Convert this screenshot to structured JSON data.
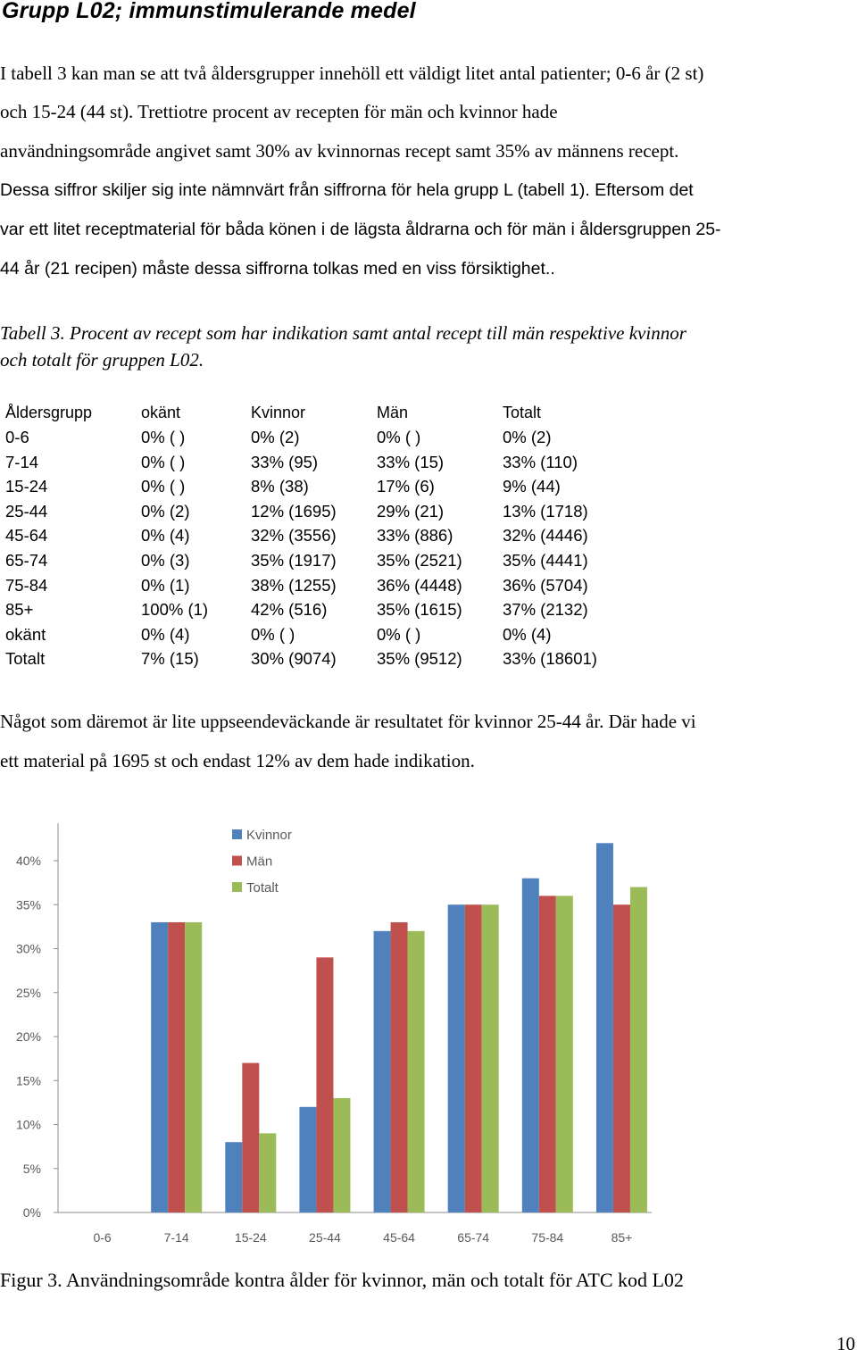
{
  "heading": "Grupp L02; immunstimulerande medel",
  "intro_lines": [
    "I tabell 3 kan man se att två åldersgrupper innehöll ett väldigt litet antal patienter; 0-6 år (2 st)",
    "och 15-24 (44 st). Trettiotre procent av recepten för män och kvinnor hade",
    "användningsområde angivet  samt 30% av kvinnornas recept samt 35% av männens recept."
  ],
  "intro_lines_sans": [
    "Dessa siffror skiljer sig inte nämnvärt från siffrorna för hela grupp L (tabell 1). Eftersom det",
    "var ett litet receptmaterial för båda könen i de lägsta åldrarna och för män i åldersgruppen 25-",
    "44 år (21 recipen) måste dessa siffrorna tolkas med en viss försiktighet.. "
  ],
  "table_caption": [
    "Tabell 3. Procent av recept som har indikation samt antal recept till män respektive kvinnor",
    "och totalt för gruppen L02."
  ],
  "table": {
    "headers": [
      "Åldersgrupp",
      "okänt",
      "Kvinnor",
      "Män",
      "Totalt"
    ],
    "rows": [
      [
        "0-6",
        "0% ( )",
        "0% (2)",
        "0% ( )",
        "0% (2)"
      ],
      [
        "7-14",
        "0% ( )",
        "33% (95)",
        "33% (15)",
        "33% (110)"
      ],
      [
        "15-24",
        "0% ( )",
        "8% (38)",
        "17% (6)",
        "9% (44)"
      ],
      [
        "25-44",
        "0% (2)",
        "12% (1695)",
        "29% (21)",
        "13% (1718)"
      ],
      [
        "45-64",
        "0% (4)",
        "32% (3556)",
        "33% (886)",
        "32% (4446)"
      ],
      [
        "65-74",
        "0% (3)",
        "35% (1917)",
        "35% (2521)",
        "35% (4441)"
      ],
      [
        "75-84",
        "0% (1)",
        "38% (1255)",
        "36% (4448)",
        "36% (5704)"
      ],
      [
        "85+",
        "100% (1)",
        "42% (516)",
        "35% (1615)",
        "37% (2132)"
      ],
      [
        "okänt",
        "0% (4)",
        "0% ( )",
        "0% ( )",
        "0% (4)"
      ],
      [
        "Totalt",
        "7% (15)",
        "30% (9074)",
        "35% (9512)",
        "33% (18601)"
      ]
    ]
  },
  "after_lines": [
    "Något som däremot är lite uppseendeväckande är resultatet för kvinnor 25-44 år. Där hade vi",
    "ett material på 1695 st och endast 12% av dem hade indikation."
  ],
  "chart_data": {
    "type": "bar",
    "title": "",
    "xlabel": "",
    "ylabel": "",
    "categories": [
      "0-6",
      "7-14",
      "15-24",
      "25-44",
      "45-64",
      "65-74",
      "75-84",
      "85+"
    ],
    "ylim": [
      0,
      40
    ],
    "yticks": [
      "0%",
      "5%",
      "10%",
      "15%",
      "20%",
      "25%",
      "30%",
      "35%",
      "40%"
    ],
    "legend_position": "top-center",
    "grid": false,
    "series": [
      {
        "name": "Kvinnor",
        "color": "#4f81bd",
        "values": [
          0,
          33,
          8,
          12,
          32,
          35,
          38,
          42
        ]
      },
      {
        "name": "Män",
        "color": "#c0504d",
        "values": [
          0,
          33,
          17,
          29,
          33,
          35,
          36,
          35
        ]
      },
      {
        "name": "Totalt",
        "color": "#9bbb59",
        "values": [
          0,
          33,
          9,
          13,
          32,
          35,
          36,
          37
        ]
      }
    ]
  },
  "figure_caption": "Figur 3. Användningsområde kontra ålder för kvinnor, män och totalt för ATC kod L02",
  "page_number": "10"
}
